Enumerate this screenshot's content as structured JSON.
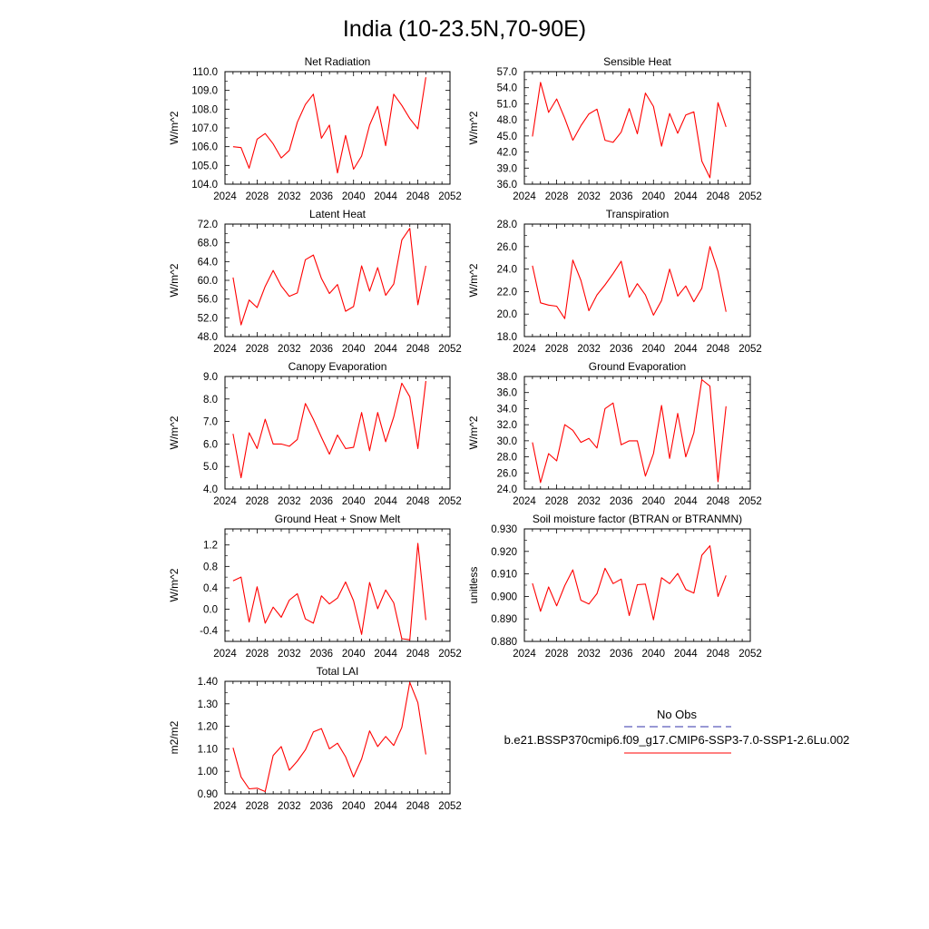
{
  "title": "India (10-23.5N,70-90E)",
  "colors": {
    "series": "#ff0000",
    "obs": "#3333aa",
    "axis": "#000000"
  },
  "chart_data": [
    {
      "type": "line",
      "title": "Net Radiation",
      "ylabel": "W/m^2",
      "xlim": [
        2024,
        2052
      ],
      "xticks": [
        2024,
        2028,
        2032,
        2036,
        2040,
        2044,
        2048,
        2052
      ],
      "ylim": [
        104,
        110
      ],
      "yticks": [
        104.0,
        105.0,
        106.0,
        107.0,
        108.0,
        109.0,
        110.0
      ],
      "ydecimals": 1,
      "x": [
        2025,
        2026,
        2027,
        2028,
        2029,
        2030,
        2031,
        2032,
        2033,
        2034,
        2035,
        2036,
        2037,
        2038,
        2039,
        2040,
        2041,
        2042,
        2043,
        2044,
        2045,
        2046,
        2047,
        2048,
        2049
      ],
      "series": [
        {
          "values": [
            106.0,
            105.95,
            104.85,
            106.4,
            106.7,
            106.15,
            105.4,
            105.8,
            107.3,
            108.25,
            108.8,
            106.45,
            107.15,
            104.6,
            106.6,
            104.8,
            105.5,
            107.15,
            108.15,
            106.05,
            108.8,
            108.2,
            107.5,
            106.95,
            109.7
          ]
        }
      ]
    },
    {
      "type": "line",
      "title": "Sensible Heat",
      "ylabel": "W/m^2",
      "xlim": [
        2024,
        2052
      ],
      "xticks": [
        2024,
        2028,
        2032,
        2036,
        2040,
        2044,
        2048,
        2052
      ],
      "ylim": [
        36,
        57
      ],
      "yticks": [
        36.0,
        39.0,
        42.0,
        45.0,
        48.0,
        51.0,
        54.0,
        57.0
      ],
      "ydecimals": 1,
      "x": [
        2025,
        2026,
        2027,
        2028,
        2029,
        2030,
        2031,
        2032,
        2033,
        2034,
        2035,
        2036,
        2037,
        2038,
        2039,
        2040,
        2041,
        2042,
        2043,
        2044,
        2045,
        2046,
        2047,
        2048,
        2049
      ],
      "series": [
        {
          "values": [
            44.9,
            55.0,
            49.4,
            51.9,
            48.3,
            44.2,
            46.9,
            49.1,
            50.0,
            44.2,
            43.8,
            45.7,
            50.1,
            45.4,
            53.0,
            50.5,
            43.1,
            49.2,
            45.5,
            48.9,
            49.5,
            40.3,
            37.2,
            51.2,
            46.7
          ]
        }
      ]
    },
    {
      "type": "line",
      "title": "Latent Heat",
      "ylabel": "W/m^2",
      "xlim": [
        2024,
        2052
      ],
      "xticks": [
        2024,
        2028,
        2032,
        2036,
        2040,
        2044,
        2048,
        2052
      ],
      "ylim": [
        48,
        72
      ],
      "yticks": [
        48.0,
        52.0,
        56.0,
        60.0,
        64.0,
        68.0,
        72.0
      ],
      "ydecimals": 1,
      "x": [
        2025,
        2026,
        2027,
        2028,
        2029,
        2030,
        2031,
        2032,
        2033,
        2034,
        2035,
        2036,
        2037,
        2038,
        2039,
        2040,
        2041,
        2042,
        2043,
        2044,
        2045,
        2046,
        2047,
        2048,
        2049
      ],
      "series": [
        {
          "values": [
            60.6,
            50.5,
            55.8,
            54.2,
            58.7,
            62.1,
            58.8,
            56.6,
            57.3,
            64.4,
            65.4,
            60.4,
            57.2,
            59.1,
            53.4,
            54.4,
            63.1,
            57.7,
            62.7,
            56.8,
            59.2,
            68.6,
            71.1,
            54.8,
            63.1
          ]
        }
      ]
    },
    {
      "type": "line",
      "title": "Transpiration",
      "ylabel": "W/m^2",
      "xlim": [
        2024,
        2052
      ],
      "xticks": [
        2024,
        2028,
        2032,
        2036,
        2040,
        2044,
        2048,
        2052
      ],
      "ylim": [
        18,
        28
      ],
      "yticks": [
        18.0,
        20.0,
        22.0,
        24.0,
        26.0,
        28.0
      ],
      "ydecimals": 1,
      "x": [
        2025,
        2026,
        2027,
        2028,
        2029,
        2030,
        2031,
        2032,
        2033,
        2034,
        2035,
        2036,
        2037,
        2038,
        2039,
        2040,
        2041,
        2042,
        2043,
        2044,
        2045,
        2046,
        2047,
        2048,
        2049
      ],
      "series": [
        {
          "values": [
            24.3,
            21.0,
            20.8,
            20.7,
            19.6,
            24.8,
            23.0,
            20.3,
            21.7,
            22.6,
            23.6,
            24.7,
            21.5,
            22.7,
            21.7,
            19.9,
            21.2,
            24.0,
            21.6,
            22.5,
            21.1,
            22.3,
            26.0,
            23.8,
            20.2
          ]
        }
      ]
    },
    {
      "type": "line",
      "title": "Canopy Evaporation",
      "ylabel": "W/m^2",
      "xlim": [
        2024,
        2052
      ],
      "xticks": [
        2024,
        2028,
        2032,
        2036,
        2040,
        2044,
        2048,
        2052
      ],
      "ylim": [
        4,
        9
      ],
      "yticks": [
        4.0,
        5.0,
        6.0,
        7.0,
        8.0,
        9.0
      ],
      "ydecimals": 1,
      "x": [
        2025,
        2026,
        2027,
        2028,
        2029,
        2030,
        2031,
        2032,
        2033,
        2034,
        2035,
        2036,
        2037,
        2038,
        2039,
        2040,
        2041,
        2042,
        2043,
        2044,
        2045,
        2046,
        2047,
        2048,
        2049
      ],
      "series": [
        {
          "values": [
            6.45,
            4.5,
            6.5,
            5.8,
            7.1,
            6.0,
            6.0,
            5.9,
            6.2,
            7.8,
            7.1,
            6.3,
            5.55,
            6.4,
            5.8,
            5.85,
            7.4,
            5.7,
            7.4,
            6.1,
            7.2,
            8.7,
            8.1,
            5.8,
            8.8
          ]
        }
      ]
    },
    {
      "type": "line",
      "title": "Ground Evaporation",
      "ylabel": "W/m^2",
      "xlim": [
        2024,
        2052
      ],
      "xticks": [
        2024,
        2028,
        2032,
        2036,
        2040,
        2044,
        2048,
        2052
      ],
      "ylim": [
        24,
        38
      ],
      "yticks": [
        24.0,
        26.0,
        28.0,
        30.0,
        32.0,
        34.0,
        36.0,
        38.0
      ],
      "ydecimals": 1,
      "x": [
        2025,
        2026,
        2027,
        2028,
        2029,
        2030,
        2031,
        2032,
        2033,
        2034,
        2035,
        2036,
        2037,
        2038,
        2039,
        2040,
        2041,
        2042,
        2043,
        2044,
        2045,
        2046,
        2047,
        2048,
        2049
      ],
      "series": [
        {
          "values": [
            29.8,
            24.8,
            28.4,
            27.5,
            32.0,
            31.3,
            29.8,
            30.3,
            29.1,
            34.0,
            34.7,
            29.5,
            30.0,
            30.0,
            25.6,
            28.4,
            34.4,
            27.8,
            33.4,
            28.0,
            31.0,
            37.6,
            36.8,
            24.9,
            34.3
          ]
        }
      ]
    },
    {
      "type": "line",
      "title": "Ground Heat + Snow Melt",
      "ylabel": "W/m^2",
      "xlim": [
        2024,
        2052
      ],
      "xticks": [
        2024,
        2028,
        2032,
        2036,
        2040,
        2044,
        2048,
        2052
      ],
      "ylim": [
        -0.6,
        1.5
      ],
      "yticks": [
        -0.4,
        0.0,
        0.4,
        0.8,
        1.2
      ],
      "ydecimals": 1,
      "x": [
        2025,
        2026,
        2027,
        2028,
        2029,
        2030,
        2031,
        2032,
        2033,
        2034,
        2035,
        2036,
        2037,
        2038,
        2039,
        2040,
        2041,
        2042,
        2043,
        2044,
        2045,
        2046,
        2047,
        2048,
        2049
      ],
      "series": [
        {
          "values": [
            0.53,
            0.6,
            -0.24,
            0.42,
            -0.26,
            0.04,
            -0.15,
            0.17,
            0.29,
            -0.18,
            -0.26,
            0.25,
            0.1,
            0.21,
            0.51,
            0.16,
            -0.47,
            0.5,
            0.01,
            0.36,
            0.12,
            -0.55,
            -0.57,
            1.23,
            -0.2
          ]
        }
      ]
    },
    {
      "type": "line",
      "title": "Soil moisture factor (BTRAN or BTRANMN)",
      "ylabel": "unitless",
      "xlim": [
        2024,
        2052
      ],
      "xticks": [
        2024,
        2028,
        2032,
        2036,
        2040,
        2044,
        2048,
        2052
      ],
      "ylim": [
        0.88,
        0.93
      ],
      "yticks": [
        0.88,
        0.89,
        0.9,
        0.91,
        0.92,
        0.93
      ],
      "ydecimals": 3,
      "x": [
        2025,
        2026,
        2027,
        2028,
        2029,
        2030,
        2031,
        2032,
        2033,
        2034,
        2035,
        2036,
        2037,
        2038,
        2039,
        2040,
        2041,
        2042,
        2043,
        2044,
        2045,
        2046,
        2047,
        2048,
        2049
      ],
      "series": [
        {
          "values": [
            0.9058,
            0.8934,
            0.9042,
            0.8958,
            0.9048,
            0.9118,
            0.8983,
            0.8966,
            0.9012,
            0.9125,
            0.9057,
            0.9077,
            0.8915,
            0.9052,
            0.9055,
            0.8896,
            0.9083,
            0.9057,
            0.9102,
            0.9031,
            0.9015,
            0.9183,
            0.9225,
            0.9,
            0.9093
          ]
        }
      ]
    },
    {
      "type": "line",
      "title": "Total LAI",
      "ylabel": "m2/m2",
      "xlim": [
        2024,
        2052
      ],
      "xticks": [
        2024,
        2028,
        2032,
        2036,
        2040,
        2044,
        2048,
        2052
      ],
      "ylim": [
        0.9,
        1.4
      ],
      "yticks": [
        0.9,
        1.0,
        1.1,
        1.2,
        1.3,
        1.4
      ],
      "ydecimals": 2,
      "x": [
        2025,
        2026,
        2027,
        2028,
        2029,
        2030,
        2031,
        2032,
        2033,
        2034,
        2035,
        2036,
        2037,
        2038,
        2039,
        2040,
        2041,
        2042,
        2043,
        2044,
        2045,
        2046,
        2047,
        2048,
        2049
      ],
      "series": [
        {
          "values": [
            1.105,
            0.975,
            0.922,
            0.925,
            0.91,
            1.07,
            1.11,
            1.005,
            1.045,
            1.095,
            1.175,
            1.19,
            1.1,
            1.125,
            1.065,
            0.975,
            1.055,
            1.18,
            1.11,
            1.155,
            1.115,
            1.195,
            1.395,
            1.305,
            1.075
          ]
        }
      ]
    }
  ],
  "legend": {
    "items": [
      {
        "label": "No Obs",
        "style": "dashed",
        "color": "#3333aa"
      },
      {
        "label": "b.e21.BSSP370cmip6.f09_g17.CMIP6-SSP3-7.0-SSP1-2.6Lu.002",
        "style": "solid",
        "color": "#ff0000"
      }
    ]
  }
}
